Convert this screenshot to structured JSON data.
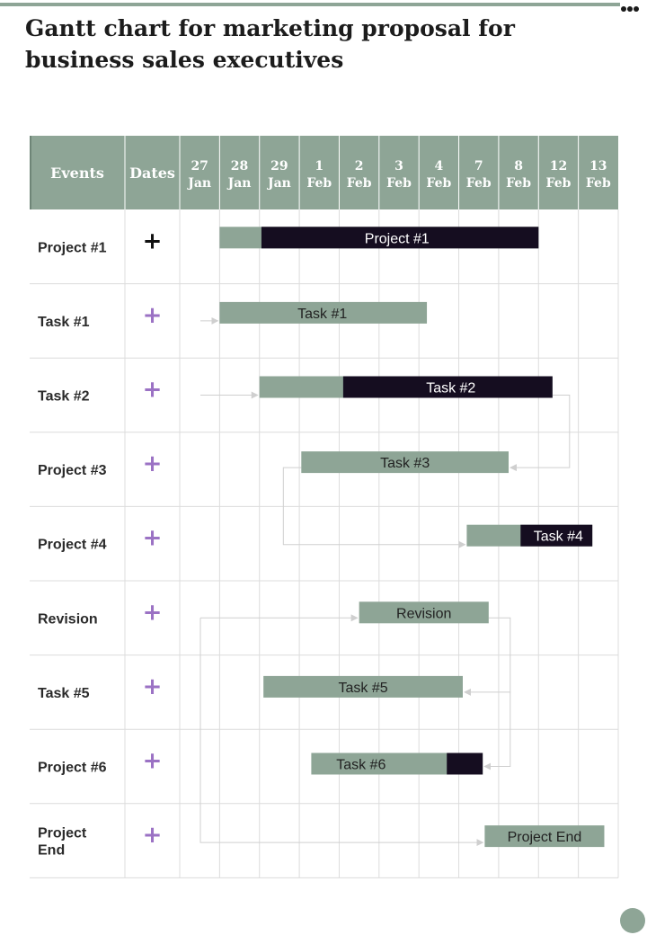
{
  "page": {
    "title": "Gantt chart for marketing proposal for business sales executives"
  },
  "colors": {
    "header_bg": "#8ea596",
    "bar_light": "#8ea596",
    "bar_dark": "#150d20",
    "plus_dark": "#111111",
    "plus_purple": "#9b72c4",
    "grid": "#dcdcdc",
    "arrow": "#cfcfcf"
  },
  "chart_data": {
    "type": "gantt",
    "columns": {
      "events": "Events",
      "dates": "Dates"
    },
    "dates": [
      {
        "day": "27",
        "month": "Jan"
      },
      {
        "day": "28",
        "month": "Jan"
      },
      {
        "day": "29",
        "month": "Jan"
      },
      {
        "day": "1",
        "month": "Feb"
      },
      {
        "day": "2",
        "month": "Feb"
      },
      {
        "day": "3",
        "month": "Feb"
      },
      {
        "day": "4",
        "month": "Feb"
      },
      {
        "day": "7",
        "month": "Feb"
      },
      {
        "day": "8",
        "month": "Feb"
      },
      {
        "day": "12",
        "month": "Feb"
      },
      {
        "day": "13",
        "month": "Feb"
      }
    ],
    "rows": [
      {
        "event": [
          "Project #1"
        ],
        "marker": "+",
        "marker_color": "dark",
        "bar": {
          "label": "Project #1",
          "start": 1.0,
          "end": 9.0,
          "progress_end": 2.05
        }
      },
      {
        "event": [
          "Task #1"
        ],
        "marker": "+",
        "marker_color": "purple",
        "bar": {
          "label": "Task #1",
          "start": 1.0,
          "end": 6.2,
          "progress_end": null
        }
      },
      {
        "event": [
          "Task #2"
        ],
        "marker": "+",
        "marker_color": "purple",
        "bar": {
          "label": "Task #2",
          "start": 2.0,
          "end": 9.35,
          "progress_end": 4.1
        }
      },
      {
        "event": [
          "Project #3"
        ],
        "marker": "+",
        "marker_color": "purple",
        "bar": {
          "label": "Task #3",
          "start": 3.05,
          "end": 8.25,
          "progress_end": null
        }
      },
      {
        "event": [
          "Project #4"
        ],
        "marker": "+",
        "marker_color": "purple",
        "bar": {
          "label": "Task #4",
          "start": 7.2,
          "end": 10.35,
          "progress_end": 8.55
        }
      },
      {
        "event": [
          "Revision"
        ],
        "marker": "+",
        "marker_color": "purple",
        "bar": {
          "label": "Revision",
          "start": 4.5,
          "end": 7.75,
          "progress_end": null
        }
      },
      {
        "event": [
          "Task #5"
        ],
        "marker": "+",
        "marker_color": "purple",
        "bar": {
          "label": "Task #5",
          "start": 2.1,
          "end": 7.1,
          "progress_end": null
        }
      },
      {
        "event": [
          "Project #6"
        ],
        "marker": "+",
        "marker_color": "purple",
        "bar": {
          "label": "Task #6",
          "start": 3.3,
          "end": 7.6,
          "progress_end": 6.7,
          "progress_side": "right"
        }
      },
      {
        "event": [
          "Project",
          "End"
        ],
        "marker": "+",
        "marker_color": "purple",
        "bar": {
          "label": "Project End",
          "start": 7.65,
          "end": 10.65,
          "progress_end": null
        }
      }
    ]
  }
}
